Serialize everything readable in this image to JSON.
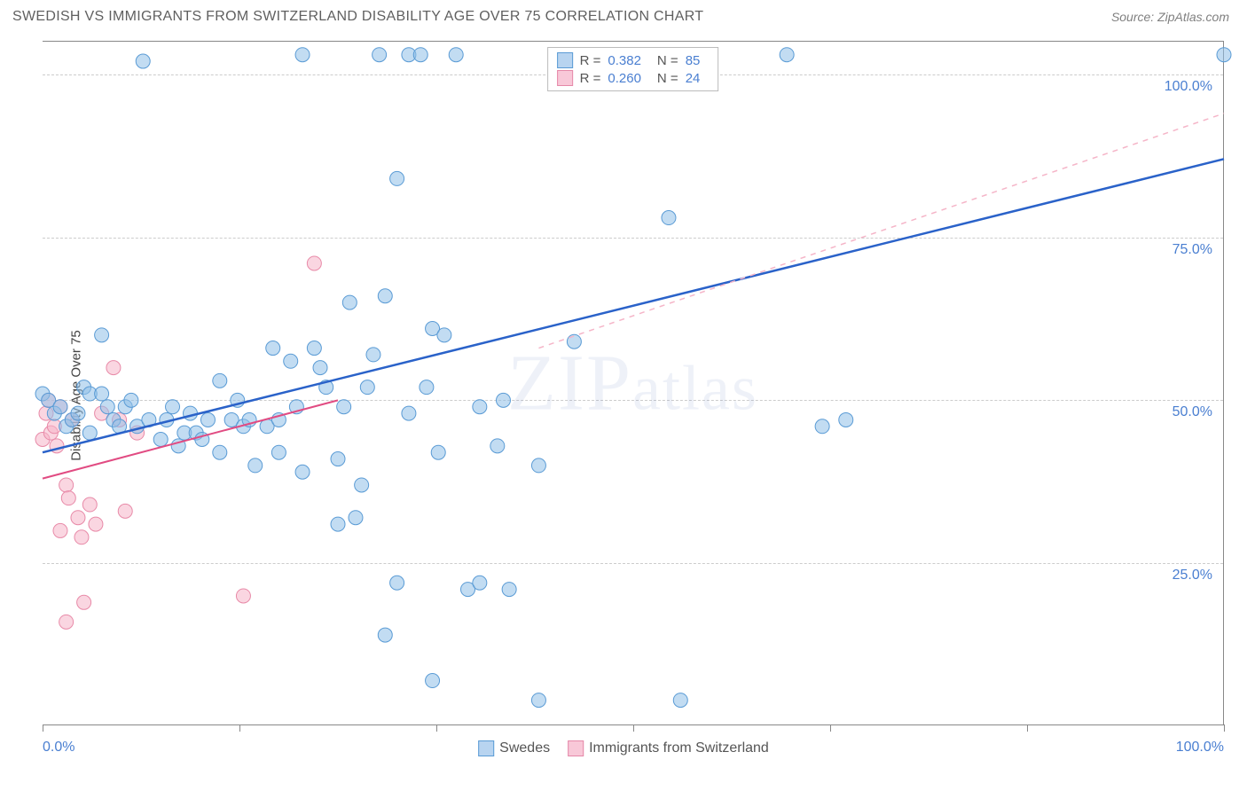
{
  "header": {
    "title": "SWEDISH VS IMMIGRANTS FROM SWITZERLAND DISABILITY AGE OVER 75 CORRELATION CHART",
    "source": "Source: ZipAtlas.com"
  },
  "axis": {
    "y_label": "Disability Age Over 75",
    "x_min": 0,
    "x_max": 100,
    "y_min": 0,
    "y_max": 105,
    "y_ticks": [
      25,
      50,
      75,
      100
    ],
    "y_tick_labels": [
      "25.0%",
      "50.0%",
      "75.0%",
      "100.0%"
    ],
    "x_ticks": [
      0,
      16.67,
      33.33,
      50,
      66.67,
      83.33,
      100
    ],
    "x_label_left": "0.0%",
    "x_label_right": "100.0%"
  },
  "legend_top": {
    "rows": [
      {
        "swatch_fill": "#b8d4f0",
        "swatch_stroke": "#5a9bd5",
        "r_label": "R = ",
        "r_value": "0.382",
        "n_label": "N = ",
        "n_value": "85"
      },
      {
        "swatch_fill": "#f8c8d8",
        "swatch_stroke": "#e588a8",
        "r_label": "R = ",
        "r_value": "0.260",
        "n_label": "N = ",
        "n_value": "24"
      }
    ]
  },
  "legend_bottom": {
    "items": [
      {
        "swatch_fill": "#b8d4f0",
        "swatch_stroke": "#5a9bd5",
        "label": "Swedes"
      },
      {
        "swatch_fill": "#f8c8d8",
        "swatch_stroke": "#e588a8",
        "label": "Immigrants from Switzerland"
      }
    ]
  },
  "watermark": "ZIPatlas",
  "series": {
    "blue": {
      "point_fill": "rgba(144, 192, 232, 0.55)",
      "point_stroke": "#5a9bd5",
      "point_r": 8,
      "line_color": "#2a62c9",
      "line_width": 2.5,
      "line_dash_color": "#f5b5c8",
      "regression": {
        "x1": 0,
        "y1": 42,
        "x2": 100,
        "y2": 87
      },
      "regression_dash": {
        "x1": 42,
        "y1": 58,
        "x2": 100,
        "y2": 94
      },
      "points": [
        [
          0,
          51
        ],
        [
          0.5,
          50
        ],
        [
          1,
          48
        ],
        [
          1.5,
          49
        ],
        [
          2,
          46
        ],
        [
          2.5,
          47
        ],
        [
          3,
          48
        ],
        [
          3.5,
          52
        ],
        [
          4,
          51
        ],
        [
          4,
          45
        ],
        [
          5,
          51
        ],
        [
          5,
          60
        ],
        [
          5.5,
          49
        ],
        [
          6,
          47
        ],
        [
          6.5,
          46
        ],
        [
          7,
          49
        ],
        [
          7.5,
          50
        ],
        [
          8,
          46
        ],
        [
          8.5,
          102
        ],
        [
          9,
          47
        ],
        [
          10,
          44
        ],
        [
          10.5,
          47
        ],
        [
          11,
          49
        ],
        [
          11.5,
          43
        ],
        [
          12,
          45
        ],
        [
          12.5,
          48
        ],
        [
          13,
          45
        ],
        [
          13.5,
          44
        ],
        [
          14,
          47
        ],
        [
          15,
          42
        ],
        [
          15,
          53
        ],
        [
          16,
          47
        ],
        [
          16.5,
          50
        ],
        [
          17,
          46
        ],
        [
          17.5,
          47
        ],
        [
          18,
          40
        ],
        [
          19,
          46
        ],
        [
          19.5,
          58
        ],
        [
          20,
          42
        ],
        [
          20,
          47
        ],
        [
          21,
          56
        ],
        [
          21.5,
          49
        ],
        [
          22,
          39
        ],
        [
          22,
          103
        ],
        [
          23,
          58
        ],
        [
          23.5,
          55
        ],
        [
          24,
          52
        ],
        [
          25,
          31
        ],
        [
          25,
          41
        ],
        [
          25.5,
          49
        ],
        [
          26,
          65
        ],
        [
          26.5,
          32
        ],
        [
          27,
          37
        ],
        [
          27.5,
          52
        ],
        [
          28,
          57
        ],
        [
          28.5,
          103
        ],
        [
          29,
          66
        ],
        [
          29,
          14
        ],
        [
          30,
          84
        ],
        [
          30,
          22
        ],
        [
          31,
          48
        ],
        [
          31,
          103
        ],
        [
          32,
          103
        ],
        [
          32.5,
          52
        ],
        [
          33,
          61
        ],
        [
          33.5,
          42
        ],
        [
          33,
          7
        ],
        [
          34,
          60
        ],
        [
          35,
          103
        ],
        [
          36,
          21
        ],
        [
          37,
          49
        ],
        [
          37,
          22
        ],
        [
          38.5,
          43
        ],
        [
          39,
          50
        ],
        [
          39.5,
          21
        ],
        [
          42,
          4
        ],
        [
          42,
          40
        ],
        [
          45,
          59
        ],
        [
          46,
          103
        ],
        [
          53,
          78
        ],
        [
          54,
          4
        ],
        [
          63,
          103
        ],
        [
          66,
          46
        ],
        [
          68,
          47
        ],
        [
          100,
          103
        ]
      ]
    },
    "pink": {
      "point_fill": "rgba(245, 181, 200, 0.55)",
      "point_stroke": "#e88aa8",
      "point_r": 8,
      "line_color": "#e14b82",
      "line_width": 2,
      "regression": {
        "x1": 0,
        "y1": 38,
        "x2": 25,
        "y2": 50
      },
      "points": [
        [
          0,
          44
        ],
        [
          0.3,
          48
        ],
        [
          0.5,
          50
        ],
        [
          0.7,
          45
        ],
        [
          1,
          46
        ],
        [
          1.2,
          43
        ],
        [
          1.5,
          49
        ],
        [
          1.5,
          30
        ],
        [
          2,
          37
        ],
        [
          2.2,
          35
        ],
        [
          2.5,
          47
        ],
        [
          2,
          16
        ],
        [
          3,
          32
        ],
        [
          3.3,
          29
        ],
        [
          3.5,
          19
        ],
        [
          4,
          34
        ],
        [
          4.5,
          31
        ],
        [
          5,
          48
        ],
        [
          6,
          55
        ],
        [
          6.5,
          47
        ],
        [
          7,
          33
        ],
        [
          8,
          45
        ],
        [
          17,
          20
        ],
        [
          23,
          71
        ]
      ]
    }
  },
  "colors": {
    "grid": "#d0d0d0",
    "axis_text": "#4a7fd1",
    "border": "#888888",
    "bg": "#ffffff"
  }
}
